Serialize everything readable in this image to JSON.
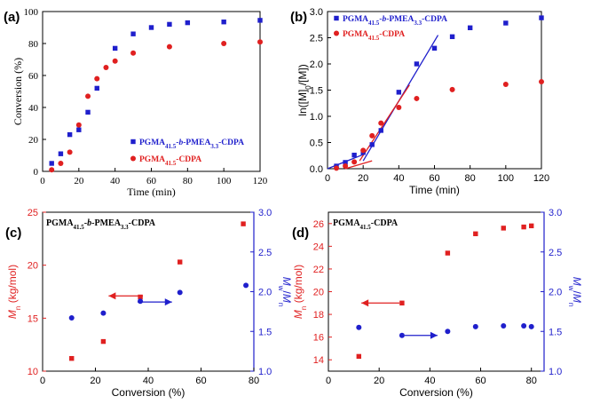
{
  "chart_data": [
    {
      "panel_label": "(a)",
      "type": "scatter",
      "xlabel": "Time (min)",
      "ylabel": "Conversion (%)",
      "xlim": [
        0,
        120
      ],
      "ylim": [
        0,
        100
      ],
      "xticks": [
        0,
        20,
        40,
        60,
        80,
        100,
        120
      ],
      "yticks": [
        0,
        20,
        40,
        60,
        80,
        100
      ],
      "legend_position": "bottom-right",
      "series": [
        {
          "name": "PGMA41.5-b-PMEA3.3-CDPA",
          "legend_parts": [
            "PGMA",
            "41.5",
            "-",
            "b",
            "-PMEA",
            "3.3",
            "-CDPA"
          ],
          "color": "#1f1fcc",
          "marker": "square",
          "points": [
            [
              5,
              5
            ],
            [
              10,
              11
            ],
            [
              15,
              23
            ],
            [
              20,
              26
            ],
            [
              25,
              37
            ],
            [
              30,
              52
            ],
            [
              40,
              77
            ],
            [
              50,
              86
            ],
            [
              60,
              90
            ],
            [
              70,
              92
            ],
            [
              80,
              93
            ],
            [
              100,
              93.5
            ],
            [
              120,
              94.5
            ]
          ]
        },
        {
          "name": "PGMA41.5-CDPA",
          "legend_parts": [
            "PGMA",
            "41.5",
            "-CDPA"
          ],
          "color": "#e02020",
          "marker": "circle",
          "points": [
            [
              5,
              1
            ],
            [
              10,
              5
            ],
            [
              15,
              12
            ],
            [
              20,
              29
            ],
            [
              25,
              47
            ],
            [
              30,
              58
            ],
            [
              35,
              65
            ],
            [
              40,
              69
            ],
            [
              50,
              74
            ],
            [
              70,
              78
            ],
            [
              100,
              80
            ],
            [
              120,
              81
            ]
          ]
        }
      ]
    },
    {
      "panel_label": "(b)",
      "type": "scatter",
      "xlabel": "Time (min)",
      "ylabel_parts": [
        "ln([M]",
        "0",
        "/[M])"
      ],
      "xlim": [
        0,
        120
      ],
      "ylim": [
        0,
        3.0
      ],
      "xticks": [
        0,
        20,
        40,
        60,
        80,
        100,
        120
      ],
      "yticks": [
        0.0,
        0.5,
        1.0,
        1.5,
        2.0,
        2.5,
        3.0
      ],
      "legend_position": "top-left",
      "series": [
        {
          "name": "PGMA41.5-b-PMEA3.3-CDPA",
          "legend_parts": [
            "PGMA",
            "41.5",
            "-",
            "b",
            "-PMEA",
            "3.3",
            "-CDPA"
          ],
          "color": "#1f1fcc",
          "marker": "square",
          "points": [
            [
              5,
              0.05
            ],
            [
              10,
              0.12
            ],
            [
              15,
              0.26
            ],
            [
              20,
              0.31
            ],
            [
              25,
              0.46
            ],
            [
              30,
              0.73
            ],
            [
              40,
              1.46
            ],
            [
              50,
              2.0
            ],
            [
              60,
              2.3
            ],
            [
              70,
              2.52
            ],
            [
              80,
              2.69
            ],
            [
              100,
              2.78
            ],
            [
              120,
              2.88
            ]
          ]
        },
        {
          "name": "PGMA41.5-CDPA",
          "legend_parts": [
            "PGMA",
            "41.5",
            "-CDPA"
          ],
          "color": "#e02020",
          "marker": "circle",
          "points": [
            [
              5,
              0.01
            ],
            [
              10,
              0.05
            ],
            [
              15,
              0.13
            ],
            [
              20,
              0.35
            ],
            [
              25,
              0.63
            ],
            [
              30,
              0.87
            ],
            [
              40,
              1.17
            ],
            [
              50,
              1.34
            ],
            [
              70,
              1.51
            ],
            [
              100,
              1.61
            ],
            [
              120,
              1.66
            ]
          ]
        }
      ],
      "fit_lines": [
        {
          "color": "#1f1fcc",
          "from": [
            0,
            0.0
          ],
          "to": [
            20,
            0.27
          ]
        },
        {
          "color": "#1f1fcc",
          "from": [
            20,
            0.15
          ],
          "to": [
            62,
            2.55
          ]
        },
        {
          "color": "#e02020",
          "from": [
            10,
            0.0
          ],
          "to": [
            25,
            0.15
          ]
        },
        {
          "color": "#e02020",
          "from": [
            18,
            0.15
          ],
          "to": [
            46,
            1.6
          ]
        }
      ]
    },
    {
      "panel_label": "(c)",
      "type": "scatter",
      "title_parts": [
        "PGMA",
        "41.5",
        "-",
        "b",
        "-PMEA",
        "3.3",
        "-CDPA"
      ],
      "xlabel": "Conversion (%)",
      "ylabel_left_parts": [
        "M",
        "n",
        " (kg/mol)"
      ],
      "ylabel_right_parts": [
        "M",
        "w",
        "/",
        "M",
        "n"
      ],
      "xlim": [
        0,
        80
      ],
      "ylim_left": [
        10,
        25
      ],
      "ylim_right": [
        1.0,
        3.0
      ],
      "xticks": [
        0,
        20,
        40,
        60,
        80
      ],
      "yticks_left": [
        10,
        15,
        20,
        25
      ],
      "yticks_right": [
        1.0,
        1.5,
        2.0,
        2.5,
        3.0
      ],
      "series": [
        {
          "name": "Mn",
          "axis": "left",
          "color": "#e02020",
          "marker": "square",
          "points": [
            [
              11,
              11.2
            ],
            [
              23,
              12.8
            ],
            [
              37,
              17
            ],
            [
              52,
              20.3
            ],
            [
              76,
              23.9
            ]
          ]
        },
        {
          "name": "Mw/Mn",
          "axis": "right",
          "color": "#1f1fcc",
          "marker": "circle",
          "points": [
            [
              11,
              1.67
            ],
            [
              23,
              1.73
            ],
            [
              37,
              1.88
            ],
            [
              52,
              1.99
            ],
            [
              77,
              2.08
            ]
          ]
        }
      ],
      "arrows": [
        {
          "color": "#e02020",
          "from": [
            38,
            17.1
          ],
          "to": [
            25,
            17.1
          ]
        },
        {
          "color": "#1f1fcc",
          "from": [
            36,
            1.87
          ],
          "to": [
            49,
            1.87
          ]
        }
      ]
    },
    {
      "panel_label": "(d)",
      "type": "scatter",
      "title_parts": [
        "PGMA",
        "41.5",
        "-CDPA"
      ],
      "xlabel": "Conversion (%)",
      "ylabel_left_parts": [
        "M",
        "n",
        " (kg/mol)"
      ],
      "ylabel_right_parts": [
        "M",
        "w",
        "/",
        "M",
        "n"
      ],
      "xlim": [
        0,
        85
      ],
      "ylim_left": [
        13,
        27
      ],
      "ylim_right": [
        1.0,
        3.0
      ],
      "xticks": [
        0,
        20,
        40,
        60,
        80
      ],
      "yticks_left": [
        14,
        16,
        18,
        20,
        22,
        24,
        26
      ],
      "yticks_right": [
        1.0,
        1.5,
        2.0,
        2.5,
        3.0
      ],
      "series": [
        {
          "name": "Mn",
          "axis": "left",
          "color": "#e02020",
          "marker": "square",
          "points": [
            [
              12,
              14.3
            ],
            [
              29,
              19
            ],
            [
              47,
              23.4
            ],
            [
              58,
              25.1
            ],
            [
              69,
              25.6
            ],
            [
              77,
              25.7
            ],
            [
              80,
              25.8
            ]
          ]
        },
        {
          "name": "Mw/Mn",
          "axis": "right",
          "color": "#1f1fcc",
          "marker": "circle",
          "points": [
            [
              12,
              1.55
            ],
            [
              29,
              1.45
            ],
            [
              47,
              1.5
            ],
            [
              58,
              1.56
            ],
            [
              69,
              1.57
            ],
            [
              77,
              1.57
            ],
            [
              80,
              1.56
            ]
          ]
        }
      ],
      "arrows": [
        {
          "color": "#e02020",
          "from": [
            28,
            19
          ],
          "to": [
            13,
            19
          ]
        },
        {
          "color": "#1f1fcc",
          "from": [
            30,
            1.45
          ],
          "to": [
            43,
            1.45
          ]
        }
      ]
    }
  ]
}
